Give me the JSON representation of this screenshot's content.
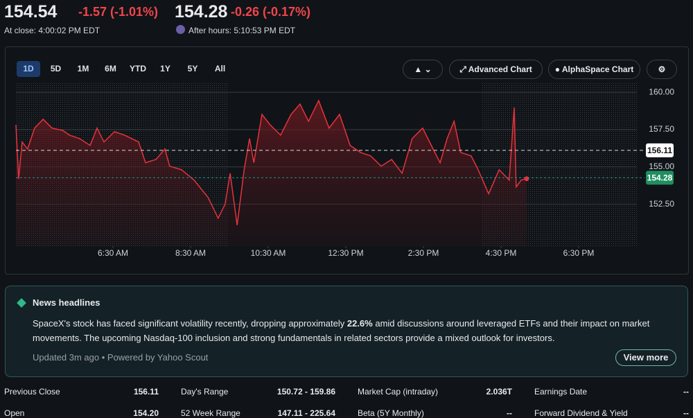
{
  "header": {
    "price": "154.54",
    "change": "-1.57 (-1.01%)",
    "close_label": "At close: 4:00:02 PM EDT",
    "after_price": "154.28",
    "after_change": "-0.26 (-0.17%)",
    "after_label": "After hours: 5:10:53 PM EDT"
  },
  "toolbar": {
    "ranges": [
      "1D",
      "5D",
      "1M",
      "6M",
      "YTD",
      "1Y",
      "5Y",
      "All"
    ],
    "buttons": [
      "Advanced Chart",
      "AlphaSpace Chart"
    ]
  },
  "chart_data": {
    "type": "line",
    "color": "#e8323c",
    "x": [
      4.0,
      4.07,
      4.16,
      4.3,
      4.48,
      4.7,
      4.93,
      5.2,
      5.38,
      5.64,
      5.91,
      6.09,
      6.27,
      6.54,
      6.8,
      7.16,
      7.34,
      7.61,
      7.84,
      7.96,
      8.27,
      8.59,
      8.95,
      9.21,
      9.39,
      9.52,
      9.7,
      9.88,
      10.02,
      10.13,
      10.34,
      10.55,
      10.82,
      11.09,
      11.32,
      11.54,
      11.8,
      12.07,
      12.34,
      12.61,
      12.88,
      13.14,
      13.41,
      13.68,
      13.95,
      14.21,
      14.48,
      14.75,
      14.93,
      15.11,
      15.29,
      15.46,
      15.73,
      15.91,
      16.18,
      16.45,
      16.71,
      16.84,
      16.89,
      17.02,
      17.16
    ],
    "values": [
      157.82,
      154.21,
      156.67,
      156.2,
      157.6,
      158.19,
      157.6,
      157.45,
      157.13,
      156.9,
      156.44,
      157.6,
      156.67,
      157.36,
      157.13,
      156.67,
      155.28,
      155.5,
      156.2,
      155.05,
      154.81,
      154.12,
      152.96,
      151.57,
      152.5,
      154.58,
      151.1,
      154.81,
      156.9,
      155.28,
      158.52,
      157.82,
      157.13,
      158.52,
      159.21,
      158.06,
      159.44,
      157.6,
      158.52,
      156.44,
      155.97,
      155.74,
      155.05,
      155.5,
      154.58,
      156.9,
      157.6,
      156.2,
      155.28,
      156.9,
      158.06,
      155.97,
      155.74,
      154.81,
      153.2,
      154.81,
      154.12,
      158.98,
      153.66,
      154.12,
      154.21
    ],
    "xlim": [
      4,
      20
    ],
    "xticks": [
      {
        "value": 6.5,
        "label": "6:30 AM"
      },
      {
        "value": 8.5,
        "label": "8:30 AM"
      },
      {
        "value": 10.5,
        "label": "10:30 AM"
      },
      {
        "value": 12.5,
        "label": "12:30 PM"
      },
      {
        "value": 14.5,
        "label": "2:30 PM"
      },
      {
        "value": 16.5,
        "label": "4:30 PM"
      },
      {
        "value": 18.5,
        "label": "6:30 PM"
      }
    ],
    "ylim": [
      149.7,
      160.7
    ],
    "yticks": [
      {
        "value": 152.5,
        "label": "152.50"
      },
      {
        "value": 155,
        "label": "155.00"
      },
      {
        "value": 157.5,
        "label": "157.50"
      },
      {
        "value": 160,
        "label": "160.00"
      }
    ],
    "grid": true,
    "markers": [
      {
        "value": 156.11,
        "color": "#ffffff"
      },
      {
        "value": 154.28,
        "color": "#1f8f5f"
      }
    ]
  },
  "news": {
    "title": "News headlines",
    "body_before": "SpaceX's stock has faced significant volatility recently, dropping approximately ",
    "body_bold": "22.6%",
    "body_after": " amid discussions around leveraged ETFs and their impact on market movements. The upcoming Nasdaq-100 inclusion and strong fundamentals in related sectors provide a mixed outlook for investors.",
    "footer": "Updated 3m ago • Powered by Yahoo Scout",
    "button": "View more"
  },
  "stats": {
    "rows": [
      [
        [
          "Previous Close",
          "156.11"
        ],
        [
          "Day's Range",
          "150.72 - 159.86"
        ],
        [
          "Market Cap (intraday)",
          "2.036T"
        ],
        [
          "Earnings Date",
          "--"
        ]
      ],
      [
        [
          "Open",
          "154.20"
        ],
        [
          "52 Week Range",
          "147.11 - 225.64"
        ],
        [
          "Beta (5Y Monthly)",
          "--"
        ],
        [
          "Forward Dividend & Yield",
          "--"
        ]
      ]
    ]
  }
}
